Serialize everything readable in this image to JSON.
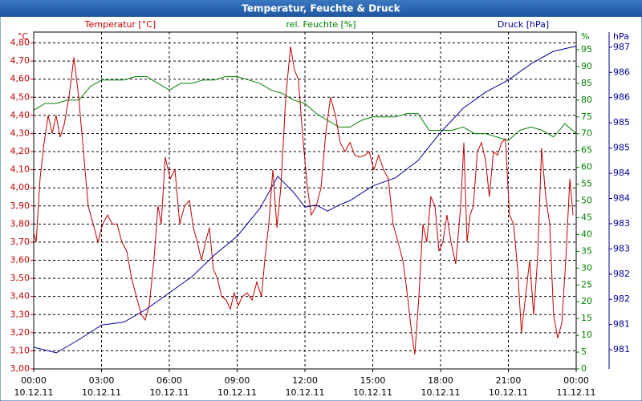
{
  "chart_data": {
    "type": "line",
    "title": "Temperatur, Feuchte & Druck",
    "ylabel": "°C",
    "y2label": "%",
    "y3label": "hPa",
    "xlim": [
      0,
      24
    ],
    "xticks": [
      {
        "value": 0,
        "label": "00:00",
        "date": "10.12.11"
      },
      {
        "value": 3,
        "label": "03:00",
        "date": "10.12.11"
      },
      {
        "value": 6,
        "label": "06:00",
        "date": "10.12.11"
      },
      {
        "value": 9,
        "label": "09:00",
        "date": "10.12.11"
      },
      {
        "value": 12,
        "label": "12:00",
        "date": "10.12.11"
      },
      {
        "value": 15,
        "label": "15:00",
        "date": "10.12.11"
      },
      {
        "value": 18,
        "label": "18:00",
        "date": "10.12.11"
      },
      {
        "value": 21,
        "label": "21:00",
        "date": "10.12.11"
      },
      {
        "value": 24,
        "label": "00:00",
        "date": "11.12.11"
      }
    ],
    "ylim": [
      3,
      4.86
    ],
    "yticks": [
      {
        "value": 3.0,
        "label": "3,00"
      },
      {
        "value": 3.1,
        "label": "3,10"
      },
      {
        "value": 3.2,
        "label": "3,20"
      },
      {
        "value": 3.3,
        "label": "3,30"
      },
      {
        "value": 3.4,
        "label": "3,40"
      },
      {
        "value": 3.5,
        "label": "3,50"
      },
      {
        "value": 3.6,
        "label": "3,60"
      },
      {
        "value": 3.7,
        "label": "3,70"
      },
      {
        "value": 3.8,
        "label": "3,80"
      },
      {
        "value": 3.9,
        "label": "3,90"
      },
      {
        "value": 4.0,
        "label": "4,00"
      },
      {
        "value": 4.1,
        "label": "4,10"
      },
      {
        "value": 4.2,
        "label": "4,20"
      },
      {
        "value": 4.3,
        "label": "4,30"
      },
      {
        "value": 4.4,
        "label": "4,40"
      },
      {
        "value": 4.5,
        "label": "4,50"
      },
      {
        "value": 4.6,
        "label": "4,60"
      },
      {
        "value": 4.7,
        "label": "4,70"
      },
      {
        "value": 4.8,
        "label": "4,80"
      }
    ],
    "y2lim": [
      0,
      100.25
    ],
    "y2ticks": [
      0,
      5,
      10,
      15,
      20,
      25,
      30,
      35,
      40,
      45,
      50,
      55,
      60,
      65,
      70,
      75,
      80,
      85,
      90,
      95
    ],
    "y3lim": [
      980.37,
      987.05
    ],
    "y3ticks": [
      {
        "value": 980.75,
        "label": "981"
      },
      {
        "value": 981.25,
        "label": "981"
      },
      {
        "value": 981.75,
        "label": "982"
      },
      {
        "value": 982.25,
        "label": "982"
      },
      {
        "value": 982.75,
        "label": "983"
      },
      {
        "value": 983.25,
        "label": "983"
      },
      {
        "value": 983.75,
        "label": "984"
      },
      {
        "value": 984.25,
        "label": "984"
      },
      {
        "value": 984.75,
        "label": "985"
      },
      {
        "value": 985.25,
        "label": "985"
      },
      {
        "value": 985.75,
        "label": "986"
      },
      {
        "value": 986.25,
        "label": "986"
      },
      {
        "value": 986.75,
        "label": "987"
      }
    ],
    "grid": true,
    "series": [
      {
        "name": "Temperatur [°C]",
        "color": "#c00000",
        "axis": "y",
        "x": [
          0,
          0.11,
          0.28,
          0.46,
          0.64,
          0.82,
          0.99,
          1.17,
          1.35,
          1.56,
          1.78,
          1.99,
          2.2,
          2.41,
          2.63,
          2.84,
          3.05,
          3.27,
          3.48,
          3.69,
          3.9,
          4.12,
          4.33,
          4.54,
          4.76,
          4.93,
          5.11,
          5.32,
          5.5,
          5.64,
          5.82,
          6.04,
          6.25,
          6.46,
          6.67,
          6.89,
          7.06,
          7.24,
          7.42,
          7.6,
          7.77,
          7.95,
          8.13,
          8.31,
          8.52,
          8.7,
          8.87,
          9.05,
          9.23,
          9.44,
          9.66,
          9.87,
          10.08,
          10.22,
          10.4,
          10.58,
          10.76,
          10.93,
          11.15,
          11.36,
          11.54,
          11.71,
          11.89,
          12.11,
          12.28,
          12.5,
          12.71,
          12.92,
          13.13,
          13.35,
          13.56,
          13.77,
          13.99,
          14.2,
          14.41,
          14.66,
          14.84,
          15.05,
          15.26,
          15.48,
          15.69,
          15.9,
          16.12,
          16.33,
          16.54,
          16.72,
          16.86,
          17.04,
          17.22,
          17.39,
          17.57,
          17.75,
          17.93,
          18.1,
          18.28,
          18.46,
          18.67,
          18.89,
          19.03,
          19.17,
          19.31,
          19.45,
          19.63,
          19.81,
          19.99,
          20.16,
          20.34,
          20.52,
          20.7,
          20.87,
          21.05,
          21.23,
          21.41,
          21.58,
          21.76,
          21.94,
          22.12,
          22.29,
          22.47,
          22.65,
          22.83,
          23.0,
          23.18,
          23.36,
          23.54,
          23.72,
          23.86
        ],
        "values": [
          3.75,
          3.7,
          4.05,
          4.25,
          4.4,
          4.3,
          4.4,
          4.28,
          4.35,
          4.5,
          4.72,
          4.5,
          4.2,
          3.9,
          3.8,
          3.7,
          3.8,
          3.85,
          3.8,
          3.8,
          3.7,
          3.65,
          3.5,
          3.4,
          3.3,
          3.27,
          3.35,
          3.6,
          3.9,
          3.8,
          4.17,
          4.05,
          4.1,
          3.8,
          3.9,
          3.93,
          3.78,
          3.7,
          3.6,
          3.7,
          3.78,
          3.55,
          3.5,
          3.4,
          3.38,
          3.33,
          3.42,
          3.35,
          3.4,
          3.42,
          3.38,
          3.48,
          3.4,
          3.6,
          3.8,
          4.1,
          3.78,
          4.0,
          4.5,
          4.78,
          4.65,
          4.6,
          4.3,
          4.0,
          3.85,
          3.9,
          4.0,
          4.3,
          4.5,
          4.4,
          4.25,
          4.2,
          4.25,
          4.18,
          4.17,
          4.18,
          4.2,
          4.1,
          4.18,
          4.1,
          4.05,
          3.8,
          3.7,
          3.6,
          3.4,
          3.2,
          3.08,
          3.4,
          3.8,
          3.7,
          3.95,
          3.9,
          3.65,
          3.7,
          3.85,
          3.7,
          3.58,
          3.9,
          4.25,
          3.7,
          3.85,
          3.9,
          4.2,
          4.25,
          4.15,
          3.95,
          4.2,
          4.18,
          4.25,
          4.27,
          3.85,
          3.8,
          3.55,
          3.2,
          3.4,
          3.6,
          3.3,
          3.6,
          4.22,
          3.95,
          3.8,
          3.3,
          3.17,
          3.25,
          3.6,
          4.05,
          3.85
        ]
      },
      {
        "name": "rel. Feuchte [%]",
        "color": "#008000",
        "axis": "y2",
        "x": [
          0,
          0.5,
          1,
          1.5,
          2,
          2.5,
          3,
          3.5,
          4,
          4.5,
          5,
          5.5,
          6,
          6.5,
          7,
          7.5,
          8,
          8.5,
          9,
          9.5,
          10,
          10.5,
          11,
          11.5,
          12,
          12.5,
          13,
          13.5,
          14,
          14.5,
          15,
          15.5,
          16,
          16.5,
          17,
          17.5,
          18,
          18.5,
          19,
          19.5,
          20,
          20.5,
          21,
          21.5,
          22,
          22.5,
          23,
          23.5,
          24
        ],
        "values": [
          77,
          79,
          79,
          80,
          80,
          84,
          86,
          86,
          86,
          87,
          87,
          85,
          83,
          85,
          85,
          86,
          86,
          87,
          87,
          86,
          85,
          83,
          82,
          80,
          79,
          76,
          74,
          72,
          72,
          74,
          75,
          75,
          75,
          76,
          76,
          71,
          71,
          71,
          72,
          70,
          70,
          69,
          68,
          71,
          72,
          71,
          69,
          73,
          70
        ]
      },
      {
        "name": "Druck [hPa]",
        "color": "#000099",
        "axis": "y3",
        "x": [
          0,
          1,
          2,
          3,
          4,
          5,
          6,
          7,
          8,
          9,
          10,
          10.8,
          11.5,
          12,
          12.5,
          13,
          13.5,
          14,
          15,
          16,
          17,
          18,
          19,
          20,
          21,
          22,
          23,
          24
        ],
        "values": [
          980.8,
          980.69,
          980.95,
          981.24,
          981.3,
          981.56,
          981.88,
          982.2,
          982.63,
          983.0,
          983.55,
          984.19,
          983.87,
          983.58,
          983.62,
          983.5,
          983.62,
          983.71,
          984.0,
          984.16,
          984.5,
          985.06,
          985.54,
          985.86,
          986.1,
          986.42,
          986.67,
          986.77
        ]
      }
    ]
  }
}
